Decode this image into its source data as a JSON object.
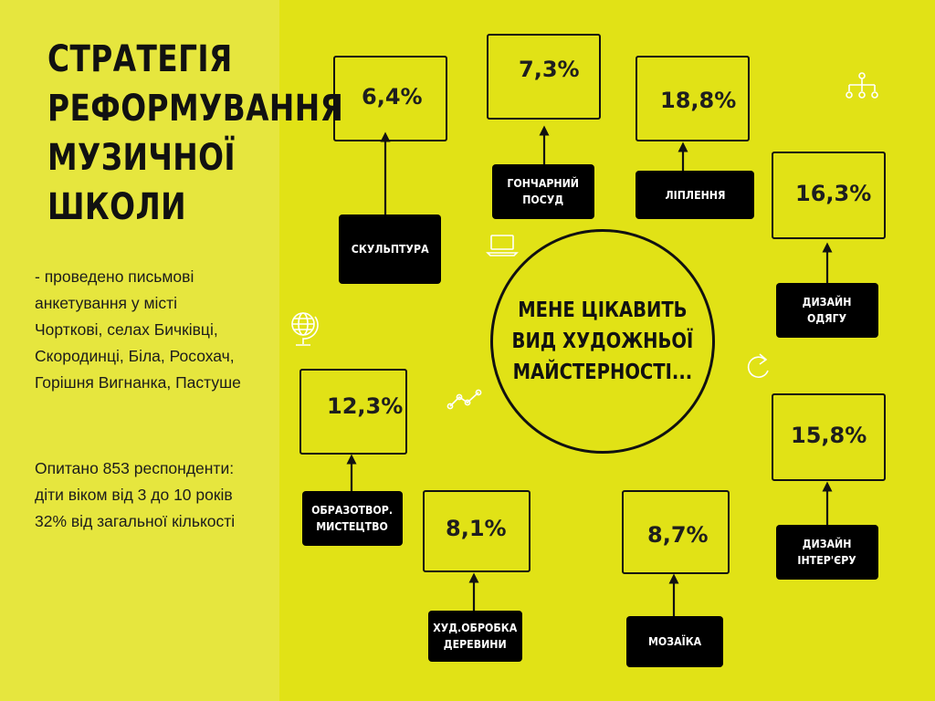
{
  "title_lines": [
    "СТРАТЕГІЯ",
    "РЕФОРМУВАННЯ",
    "МУЗИЧНОЇ",
    "ШКОЛИ"
  ],
  "survey_lines": [
    "- проведено письмові",
    "анкетування у місті",
    "Чорткові, селах Бичківці,",
    "Скородинці, Біла, Росохач,",
    "Горішня Вигнанка, Пастуше"
  ],
  "respondent_lines": [
    "Опитано 853 респонденти:",
    "діти віком від 3 до 10 років",
    "32% від загальної кількості"
  ],
  "center_lines": [
    "МЕНЕ ЦІКАВИТЬ",
    "ВИД ХУДОЖНЬОЇ",
    "МАЙСТЕРНОСТІ..."
  ],
  "items": [
    {
      "pct": "6,4%",
      "label": [
        "СКУЛЬПТУРА"
      ]
    },
    {
      "pct": "7,3%",
      "label": [
        "ГОНЧАРНИЙ",
        "ПОСУД"
      ]
    },
    {
      "pct": "18,8%",
      "label": [
        "ЛІПЛЕННЯ"
      ]
    },
    {
      "pct": "16,3%",
      "label": [
        "ДИЗАЙН",
        "ОДЯГУ"
      ]
    },
    {
      "pct": "15,8%",
      "label": [
        "ДИЗАЙН",
        "ІНТЕР'ЄРУ"
      ]
    },
    {
      "pct": "8,7%",
      "label": [
        "МОЗАЇКА"
      ]
    },
    {
      "pct": "8,1%",
      "label": [
        "ХУД.ОБРОБКА",
        "ДЕРЕВИНИ"
      ]
    },
    {
      "pct": "12,3%",
      "label": [
        "ОБРАЗОТВОР.",
        "МИСТЕЦТВО"
      ]
    }
  ],
  "colors": {
    "background": "#e1e216",
    "left_panel": "#e6e63e",
    "ink": "#111111",
    "label_bg": "#000000"
  },
  "decorative_icons": [
    "org-chart-icon",
    "laptop-icon",
    "globe-icon",
    "line-graph-icon",
    "refresh-icon"
  ]
}
